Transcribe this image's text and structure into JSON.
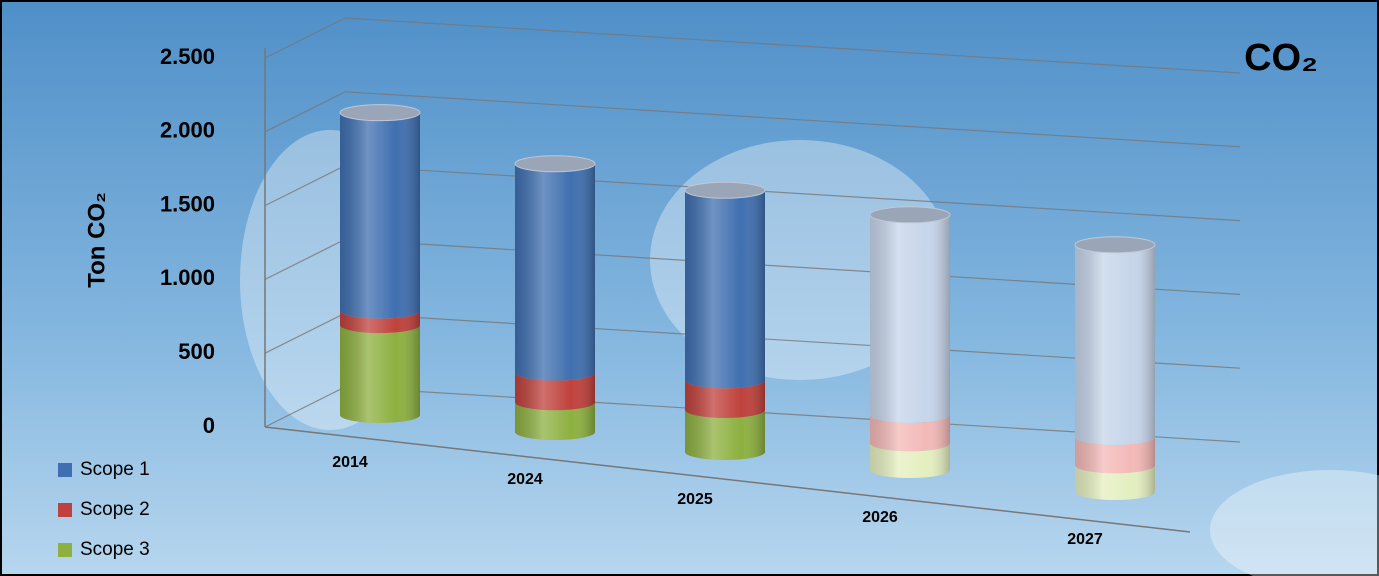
{
  "chart_data": {
    "type": "bar3d_stacked",
    "title": "CO₂",
    "y_label": "Ton CO₂",
    "categories": [
      "2014",
      "2024",
      "2025",
      "2026",
      "2027"
    ],
    "series": [
      {
        "name": "Scope 1",
        "color": "#3f6fb0",
        "colors": [
          "#3f6fb0",
          "#3f6fb0",
          "#3f6fb0",
          "#c6d5ea",
          "#c6d5ea"
        ],
        "values": [
          1365,
          1440,
          1310,
          1380,
          1325
        ]
      },
      {
        "name": "Scope 2",
        "color": "#c0413c",
        "colors": [
          "#c0413c",
          "#c0413c",
          "#c0413c",
          "#f3b9b7",
          "#f3b9b7"
        ],
        "values": [
          100,
          205,
          205,
          195,
          195
        ]
      },
      {
        "name": "Scope 3",
        "color": "#8db040",
        "colors": [
          "#8db040",
          "#8db040",
          "#8db040",
          "#e4efbf",
          "#e4efbf"
        ],
        "values": [
          620,
          205,
          290,
          185,
          185
        ]
      }
    ],
    "ylim": [
      0,
      2500
    ],
    "yticks": [
      0,
      500,
      {
        "value": 1000,
        "label": "1.000"
      },
      {
        "value": 1500,
        "label": "1.500"
      },
      {
        "value": 2000,
        "label": "2.000"
      },
      {
        "value": 2500,
        "label": "2.500"
      }
    ],
    "grid": true,
    "legend": "bottom-left"
  }
}
